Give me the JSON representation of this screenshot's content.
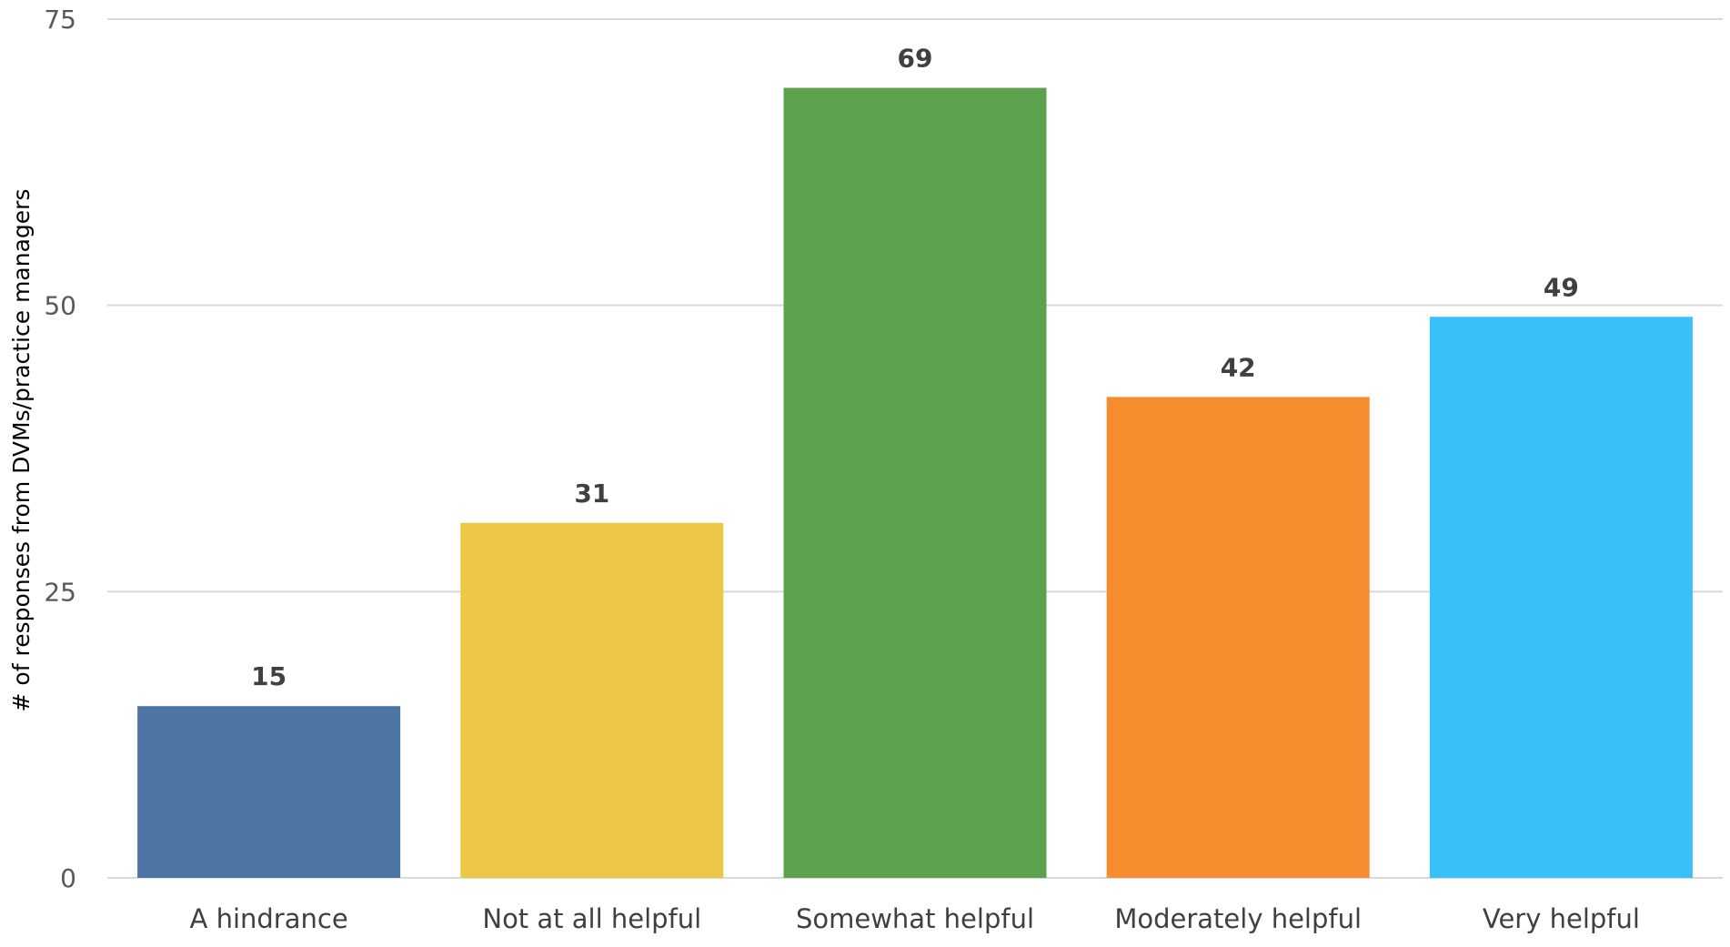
{
  "chart_data": {
    "type": "bar",
    "title": "",
    "xlabel": "",
    "ylabel": "# of responses  from DVMs/practice managers",
    "categories": [
      "A hindrance",
      "Not at all helpful",
      "Somewhat helpful",
      "Moderately helpful",
      "Very helpful"
    ],
    "values": [
      15,
      31,
      69,
      42,
      49
    ],
    "colors": [
      "#4e74a4",
      "#ecc846",
      "#5ba14e",
      "#f58d2e",
      "#38c0f8"
    ],
    "ylim": [
      0,
      75
    ],
    "yticks": [
      0,
      25,
      50,
      75
    ],
    "grid": true,
    "data_labels": true,
    "legend": "none"
  }
}
